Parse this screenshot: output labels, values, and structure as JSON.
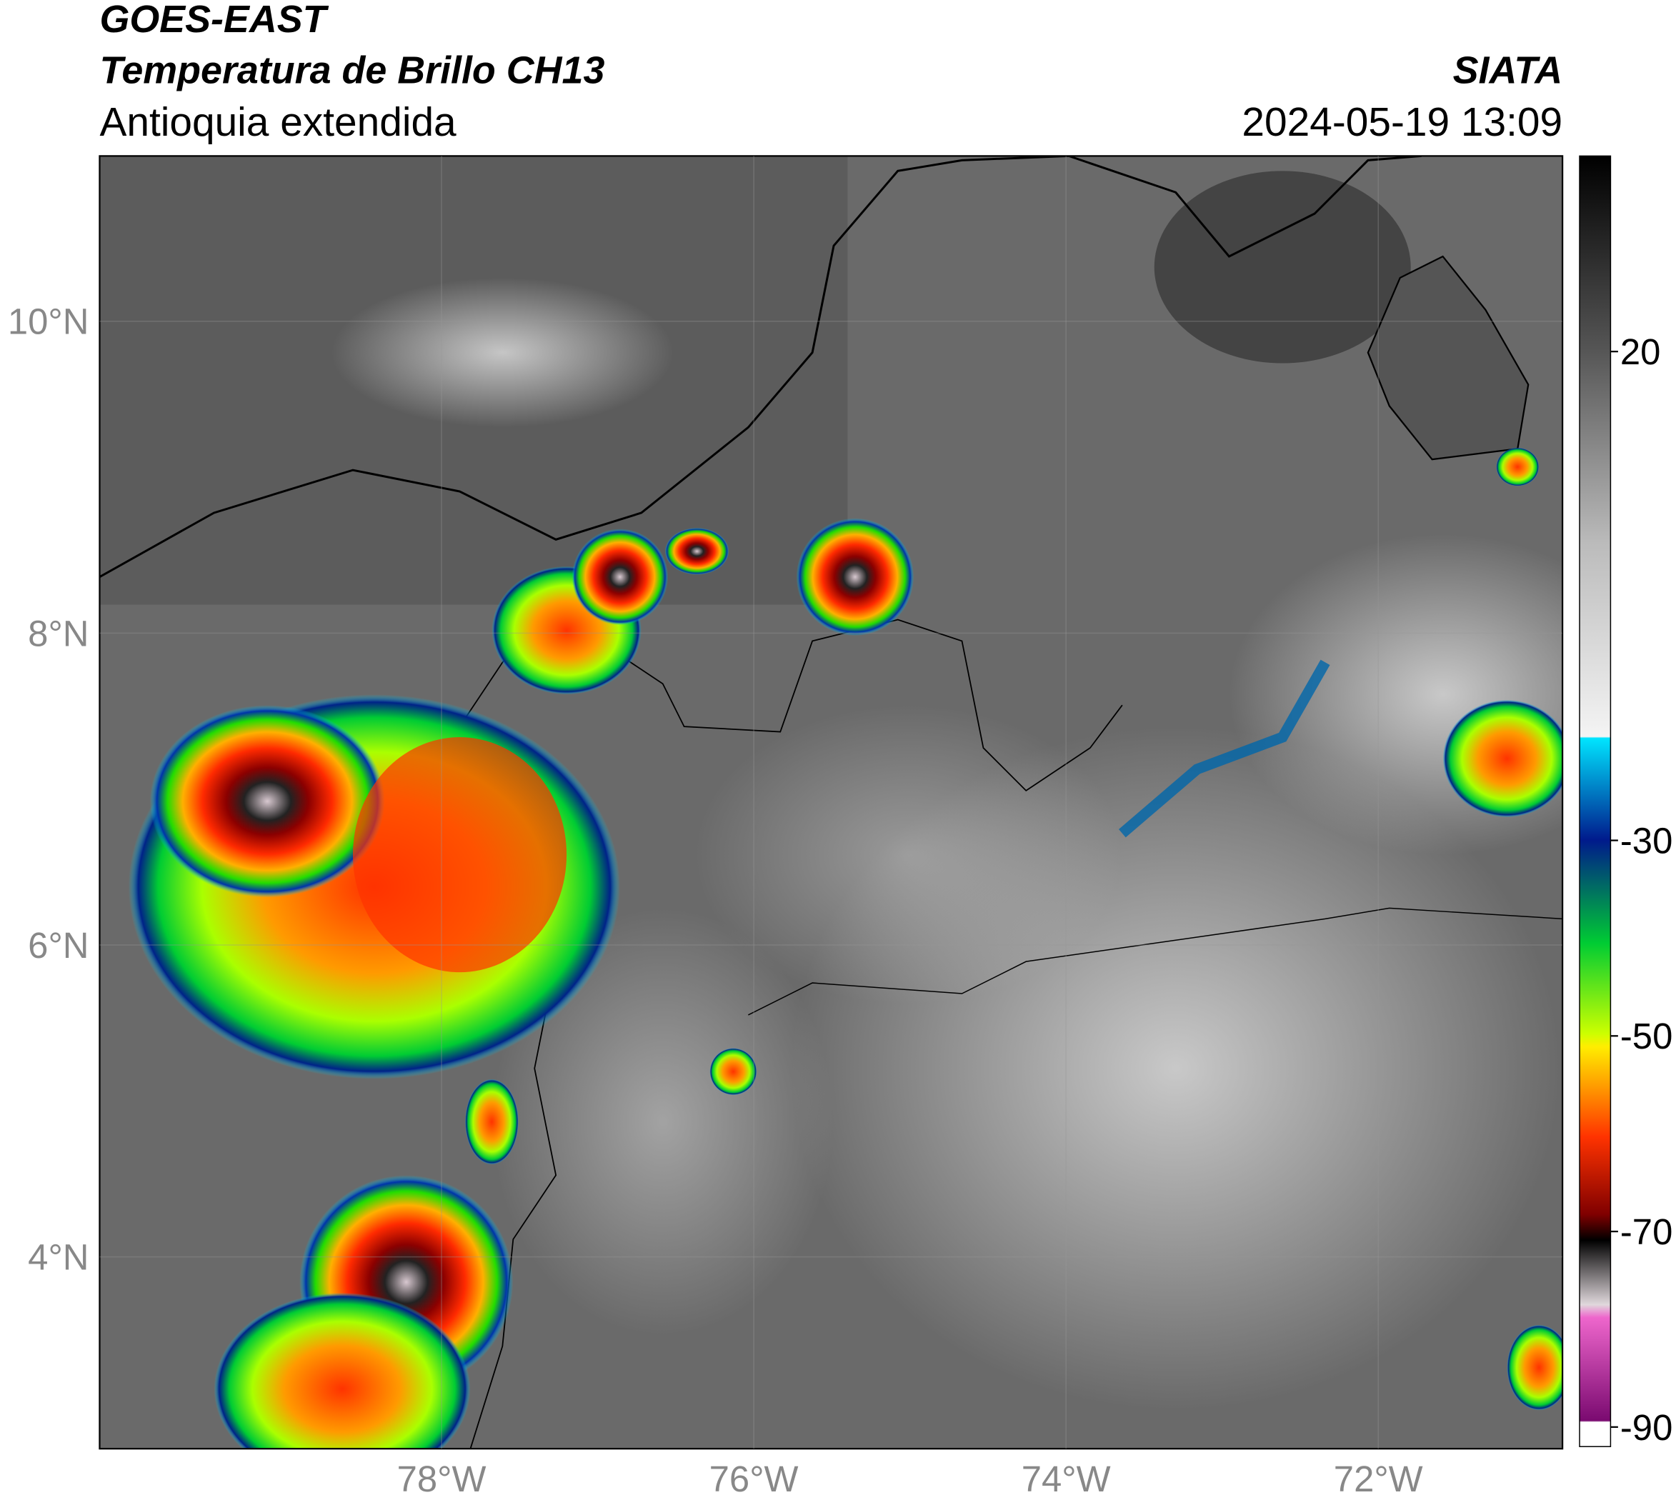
{
  "header": {
    "title": "GOES-EAST",
    "subtitle": "Temperatura de Brillo CH13",
    "region": "Antioquia extendida",
    "source": "SIATA",
    "datetime": "2024-05-19 13:09"
  },
  "map": {
    "xlim": [
      -80.19,
      -70.82
    ],
    "ylim": [
      2.77,
      11.06
    ],
    "xticks": [
      {
        "value": -78,
        "label": "78°W"
      },
      {
        "value": -76,
        "label": "76°W"
      },
      {
        "value": -74,
        "label": "74°W"
      },
      {
        "value": -72,
        "label": "72°W"
      }
    ],
    "yticks": [
      {
        "value": 10,
        "label": "10°N"
      },
      {
        "value": 8,
        "label": "8°N"
      },
      {
        "value": 6,
        "label": "6°N"
      },
      {
        "value": 4,
        "label": "4°N"
      }
    ]
  },
  "colorbar": {
    "lim": [
      -92,
      40
    ],
    "ticks": [
      20,
      -30,
      -50,
      -70,
      -90
    ]
  }
}
